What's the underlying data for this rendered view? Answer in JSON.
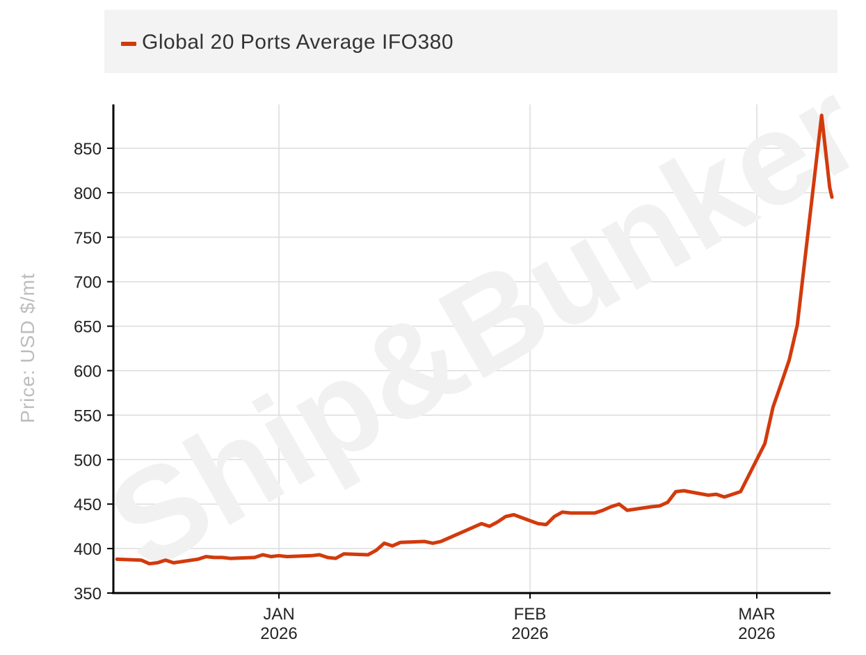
{
  "chart_data": {
    "type": "line",
    "ylabel": "Price: USD $/mt",
    "ylim": [
      350,
      900
    ],
    "yticks": [
      350,
      400,
      450,
      500,
      550,
      600,
      650,
      700,
      750,
      800,
      850
    ],
    "xticks": [
      {
        "date": "2026-01-01",
        "month": "JAN",
        "year": "2026"
      },
      {
        "date": "2026-02-01",
        "month": "FEB",
        "year": "2026"
      },
      {
        "date": "2026-03-01",
        "month": "MAR",
        "year": "2026"
      }
    ],
    "xlim": [
      "2025-12-12",
      "2026-03-10"
    ],
    "grid": true,
    "legend_position": "top",
    "watermark": "Ship&Bunker",
    "series": [
      {
        "name": "Global 20 Ports Average IFO380",
        "color": "#d23a0c",
        "points": [
          [
            "2025-12-12",
            388
          ],
          [
            "2025-12-15",
            387
          ],
          [
            "2025-12-16",
            383
          ],
          [
            "2025-12-17",
            384
          ],
          [
            "2025-12-18",
            387
          ],
          [
            "2025-12-19",
            384
          ],
          [
            "2025-12-22",
            388
          ],
          [
            "2025-12-23",
            391
          ],
          [
            "2025-12-24",
            390
          ],
          [
            "2025-12-25",
            390
          ],
          [
            "2025-12-26",
            389
          ],
          [
            "2025-12-29",
            390
          ],
          [
            "2025-12-30",
            393
          ],
          [
            "2025-12-31",
            391
          ],
          [
            "2026-01-01",
            392
          ],
          [
            "2026-01-02",
            391
          ],
          [
            "2026-01-05",
            392
          ],
          [
            "2026-01-06",
            393
          ],
          [
            "2026-01-07",
            390
          ],
          [
            "2026-01-08",
            389
          ],
          [
            "2026-01-09",
            394
          ],
          [
            "2026-01-12",
            393
          ],
          [
            "2026-01-13",
            398
          ],
          [
            "2026-01-14",
            406
          ],
          [
            "2026-01-15",
            403
          ],
          [
            "2026-01-16",
            407
          ],
          [
            "2026-01-19",
            408
          ],
          [
            "2026-01-20",
            406
          ],
          [
            "2026-01-21",
            408
          ],
          [
            "2026-01-22",
            412
          ],
          [
            "2026-01-23",
            416
          ],
          [
            "2026-01-26",
            428
          ],
          [
            "2026-01-27",
            425
          ],
          [
            "2026-01-28",
            430
          ],
          [
            "2026-01-29",
            436
          ],
          [
            "2026-01-30",
            438
          ],
          [
            "2026-02-02",
            428
          ],
          [
            "2026-02-03",
            427
          ],
          [
            "2026-02-04",
            436
          ],
          [
            "2026-02-05",
            441
          ],
          [
            "2026-02-06",
            440
          ],
          [
            "2026-02-09",
            440
          ],
          [
            "2026-02-10",
            443
          ],
          [
            "2026-02-11",
            447
          ],
          [
            "2026-02-12",
            450
          ],
          [
            "2026-02-13",
            443
          ],
          [
            "2026-02-16",
            447
          ],
          [
            "2026-02-17",
            448
          ],
          [
            "2026-02-18",
            452
          ],
          [
            "2026-02-19",
            464
          ],
          [
            "2026-02-20",
            465
          ],
          [
            "2026-02-23",
            460
          ],
          [
            "2026-02-24",
            461
          ],
          [
            "2026-02-25",
            458
          ],
          [
            "2026-02-26",
            461
          ],
          [
            "2026-02-27",
            464
          ],
          [
            "2026-03-02",
            518
          ],
          [
            "2026-03-03",
            559
          ],
          [
            "2026-03-04",
            585
          ],
          [
            "2026-03-05",
            612
          ],
          [
            "2026-03-06",
            651
          ],
          [
            "2026-03-09",
            887
          ],
          [
            "2026-03-10",
            806
          ],
          [
            "2026-03-11",
            795
          ]
        ]
      }
    ]
  }
}
